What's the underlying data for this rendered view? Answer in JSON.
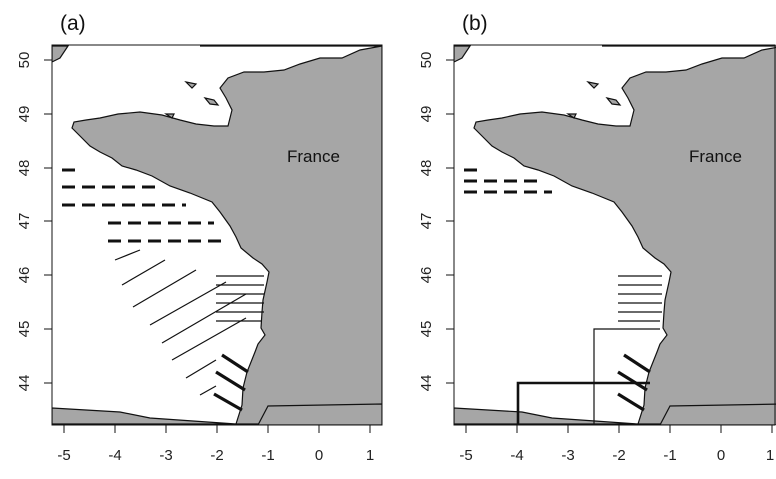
{
  "colors": {
    "land": "#a6a6a6",
    "sea": "#ffffff",
    "ink": "#111111"
  },
  "panels": [
    {
      "label": "(a)",
      "country_label": "France",
      "x_ticks": [
        "-5",
        "-4",
        "-3",
        "-2",
        "-1",
        "0",
        "1"
      ],
      "y_ticks": [
        "44",
        "45",
        "46",
        "47",
        "48",
        "49",
        "50"
      ]
    },
    {
      "label": "(b)",
      "country_label": "France",
      "x_ticks": [
        "-5",
        "-4",
        "-3",
        "-2",
        "-1",
        "0",
        "1"
      ],
      "y_ticks": [
        "44",
        "45",
        "46",
        "47",
        "48",
        "49",
        "50"
      ]
    }
  ]
}
